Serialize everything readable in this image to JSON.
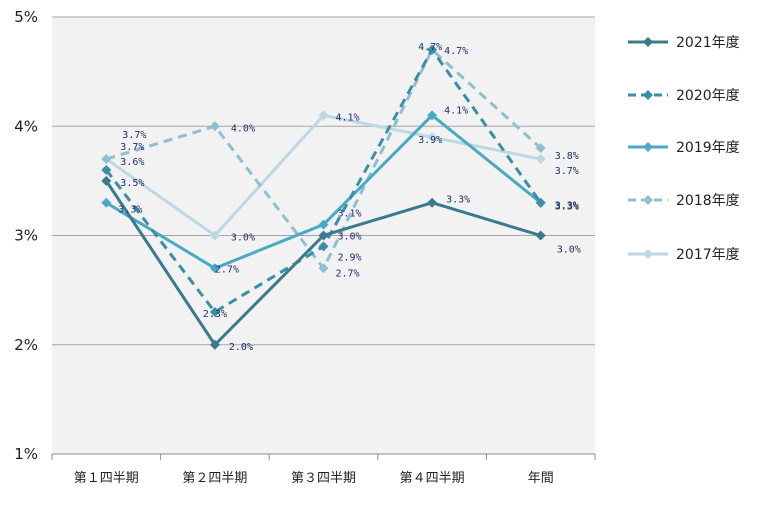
{
  "chart_data": {
    "type": "line",
    "categories": [
      "第１四半期",
      "第２四半期",
      "第３四半期",
      "第４四半期",
      "年間"
    ],
    "y_ticks": [
      "1%",
      "2%",
      "3%",
      "4%",
      "5%"
    ],
    "ylim": [
      1,
      5
    ],
    "grid": true,
    "legend_position": "right",
    "series": [
      {
        "name": "2021年度",
        "values": [
          3.5,
          2.0,
          3.0,
          3.3,
          3.0
        ],
        "labels": [
          "3.5%",
          "2.0%",
          "3.0%",
          "3.3%",
          "3.0%"
        ],
        "color": "#3a7a8c",
        "dash": "solid"
      },
      {
        "name": "2020年度",
        "values": [
          3.6,
          2.3,
          2.9,
          4.7,
          3.3
        ],
        "labels": [
          "3.6%",
          "2.3%",
          "2.9%",
          "4.7%",
          "3.3%"
        ],
        "color": "#3a8fa6",
        "dash": "dashed"
      },
      {
        "name": "2019年度",
        "values": [
          3.3,
          2.7,
          3.1,
          4.1,
          3.3
        ],
        "labels": [
          "3.3%",
          "2.7%",
          "3.1%",
          "4.1%",
          "3.3%"
        ],
        "color": "#49aac4",
        "dash": "solid"
      },
      {
        "name": "2018年度",
        "values": [
          3.7,
          4.0,
          2.7,
          4.7,
          3.8
        ],
        "labels": [
          "3.7%",
          "4.0%",
          "2.7%",
          "4.7%",
          "3.8%"
        ],
        "color": "#8fbfd0",
        "dash": "dashed"
      },
      {
        "name": "2017年度",
        "values": [
          3.7,
          3.0,
          4.1,
          3.9,
          3.7
        ],
        "labels": [
          "3.7%",
          "3.0%",
          "4.1%",
          "3.9%",
          "3.7%"
        ],
        "color": "#bcd8e2",
        "dash": "solid"
      }
    ]
  }
}
